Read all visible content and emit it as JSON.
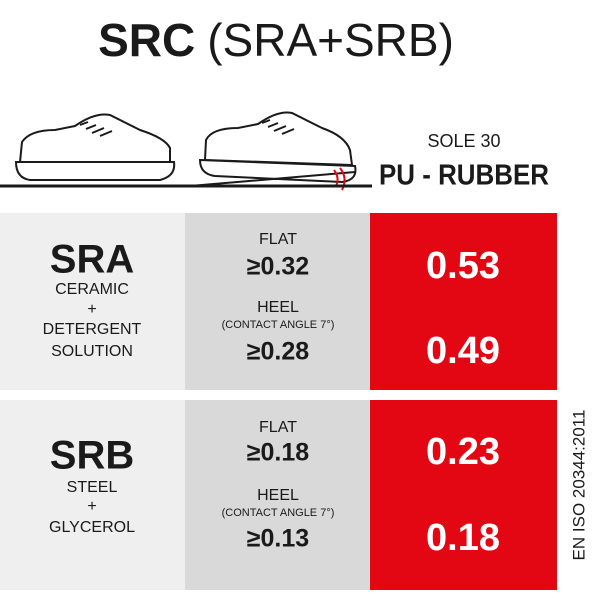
{
  "header": {
    "title": "SRC",
    "subtitle": "(SRA+SRB)"
  },
  "sole": {
    "label": "SOLE 30",
    "material": "PU - RUBBER"
  },
  "tests": [
    {
      "name": "SRA",
      "surface": [
        "CERAMIC",
        "+",
        "DETERGENT",
        "SOLUTION"
      ],
      "conditions": [
        {
          "label": "FLAT",
          "requirement": "≥0.32",
          "result": "0.53"
        },
        {
          "label": "HEEL",
          "note": "(CONTACT ANGLE 7°)",
          "requirement": "≥0.28",
          "result": "0.49"
        }
      ]
    },
    {
      "name": "SRB",
      "surface": [
        "STEEL",
        "+",
        "GLYCEROL"
      ],
      "conditions": [
        {
          "label": "FLAT",
          "requirement": "≥0.18",
          "result": "0.23"
        },
        {
          "label": "HEEL",
          "note": "(CONTACT ANGLE 7°)",
          "requirement": "≥0.13",
          "result": "0.18"
        }
      ]
    }
  ],
  "standard": "EN ISO 20344:2011"
}
